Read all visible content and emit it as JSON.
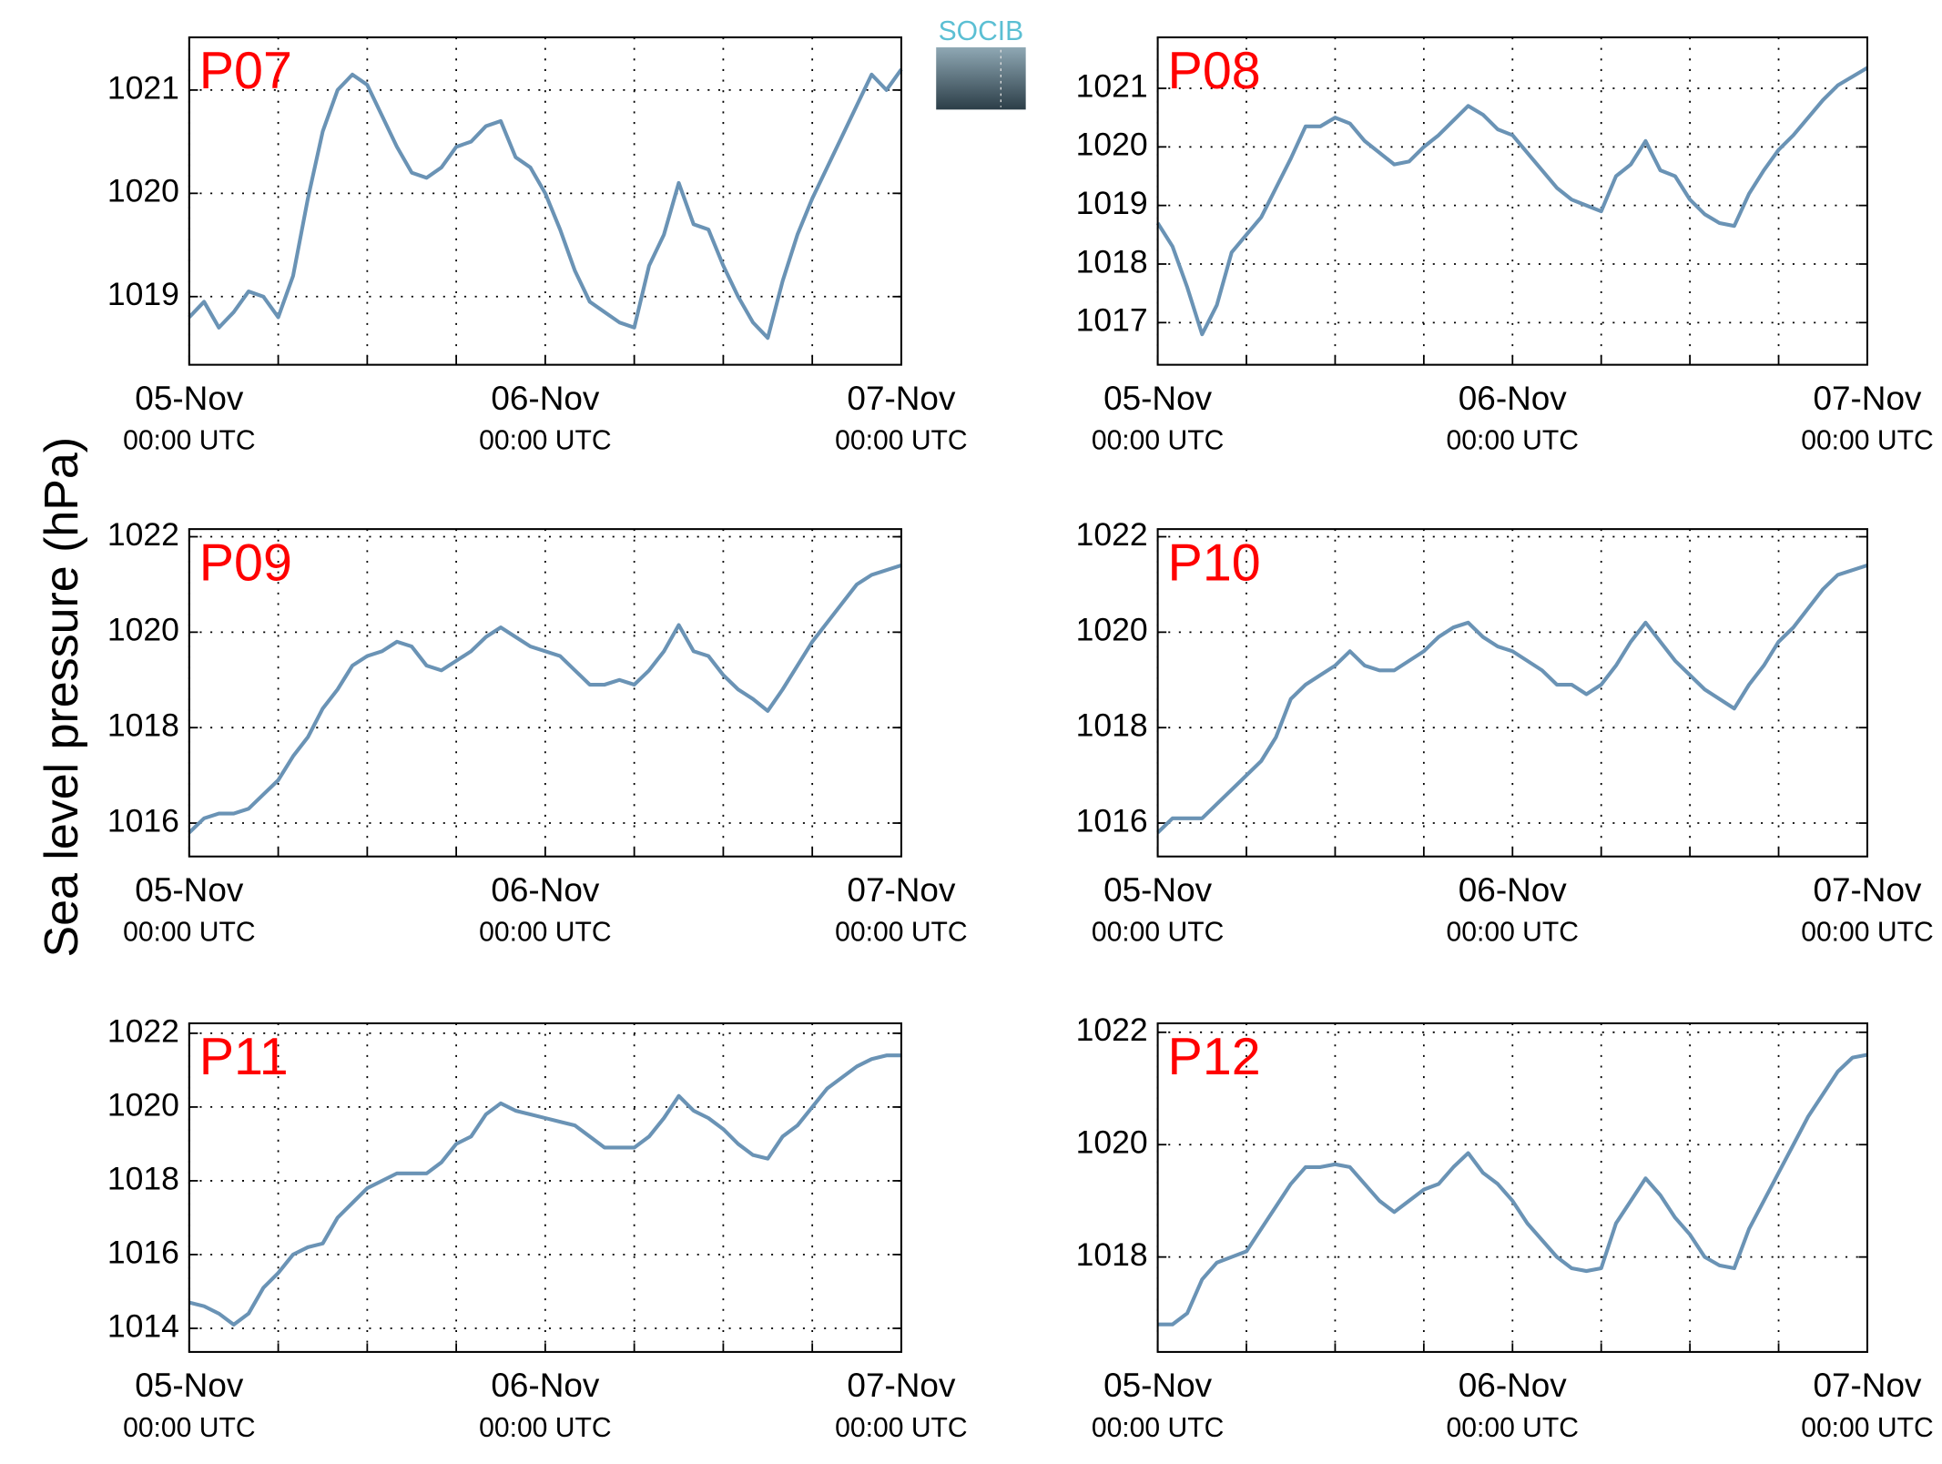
{
  "logo": "SOCIB",
  "ylabel": "Sea level pressure (hPa)",
  "chart_data": [
    {
      "type": "line",
      "title": "P07",
      "color": "#6a93b5",
      "x": [
        0,
        1,
        2,
        3,
        4,
        5,
        6,
        7,
        8,
        9,
        10,
        11,
        12,
        13,
        14,
        15,
        16,
        17,
        18,
        19,
        20,
        21,
        22,
        23,
        24,
        25,
        26,
        27,
        28,
        29,
        30,
        31,
        32,
        33,
        34,
        35,
        36,
        37,
        38,
        39,
        40,
        41,
        42,
        43,
        44,
        45,
        46,
        47,
        48
      ],
      "values": [
        1018.8,
        1018.95,
        1018.7,
        1018.85,
        1019.05,
        1019.0,
        1018.8,
        1019.2,
        1019.95,
        1020.6,
        1021.0,
        1021.15,
        1021.05,
        1020.75,
        1020.45,
        1020.2,
        1020.15,
        1020.25,
        1020.45,
        1020.5,
        1020.65,
        1020.7,
        1020.35,
        1020.25,
        1020.0,
        1019.65,
        1019.25,
        1018.95,
        1018.85,
        1018.75,
        1018.7,
        1019.3,
        1019.6,
        1020.1,
        1019.7,
        1019.65,
        1019.3,
        1019.0,
        1018.75,
        1018.6,
        1019.15,
        1019.6,
        1019.95,
        1020.25,
        1020.55,
        1020.85,
        1021.15,
        1021.0,
        1021.2
      ],
      "xlim": [
        0,
        48
      ],
      "xticks": [
        {
          "value": 0,
          "label": "05-Nov\n00:00 UTC"
        },
        {
          "value": 24,
          "label": "06-Nov\n00:00 UTC"
        },
        {
          "value": 48,
          "label": "07-Nov\n00:00 UTC"
        }
      ],
      "xminor": [
        6,
        12,
        18,
        30,
        36,
        42
      ],
      "ylim": [
        1018.34,
        1021.51
      ],
      "yticks": [
        1019,
        1020,
        1021
      ],
      "grid": true
    },
    {
      "type": "line",
      "title": "P08",
      "color": "#6a93b5",
      "x": [
        0,
        1,
        2,
        3,
        4,
        5,
        6,
        7,
        8,
        9,
        10,
        11,
        12,
        13,
        14,
        15,
        16,
        17,
        18,
        19,
        20,
        21,
        22,
        23,
        24,
        25,
        26,
        27,
        28,
        29,
        30,
        31,
        32,
        33,
        34,
        35,
        36,
        37,
        38,
        39,
        40,
        41,
        42,
        43,
        44,
        45,
        46,
        47,
        48
      ],
      "values": [
        1018.7,
        1018.3,
        1017.6,
        1016.8,
        1017.3,
        1018.2,
        1018.5,
        1018.8,
        1019.3,
        1019.8,
        1020.35,
        1020.35,
        1020.5,
        1020.4,
        1020.1,
        1019.9,
        1019.7,
        1019.75,
        1020.0,
        1020.2,
        1020.45,
        1020.7,
        1020.55,
        1020.3,
        1020.2,
        1019.9,
        1019.6,
        1019.3,
        1019.1,
        1019.0,
        1018.9,
        1019.5,
        1019.7,
        1020.1,
        1019.6,
        1019.5,
        1019.1,
        1018.85,
        1018.7,
        1018.65,
        1019.2,
        1019.6,
        1019.95,
        1020.2,
        1020.5,
        1020.8,
        1021.05,
        1021.2,
        1021.35
      ],
      "xlim": [
        0,
        48
      ],
      "xticks": [
        {
          "value": 0,
          "label": "05-Nov\n00:00 UTC"
        },
        {
          "value": 24,
          "label": "06-Nov\n00:00 UTC"
        },
        {
          "value": 48,
          "label": "07-Nov\n00:00 UTC"
        }
      ],
      "xminor": [
        6,
        12,
        18,
        30,
        36,
        42
      ],
      "ylim": [
        1016.28,
        1021.87
      ],
      "yticks": [
        1017,
        1018,
        1019,
        1020,
        1021
      ],
      "grid": true
    },
    {
      "type": "line",
      "title": "P09",
      "color": "#6a93b5",
      "x": [
        0,
        1,
        2,
        3,
        4,
        5,
        6,
        7,
        8,
        9,
        10,
        11,
        12,
        13,
        14,
        15,
        16,
        17,
        18,
        19,
        20,
        21,
        22,
        23,
        24,
        25,
        26,
        27,
        28,
        29,
        30,
        31,
        32,
        33,
        34,
        35,
        36,
        37,
        38,
        39,
        40,
        41,
        42,
        43,
        44,
        45,
        46,
        47,
        48
      ],
      "values": [
        1015.8,
        1016.1,
        1016.2,
        1016.2,
        1016.3,
        1016.6,
        1016.9,
        1017.4,
        1017.8,
        1018.4,
        1018.8,
        1019.3,
        1019.5,
        1019.6,
        1019.8,
        1019.7,
        1019.3,
        1019.2,
        1019.4,
        1019.6,
        1019.9,
        1020.1,
        1019.9,
        1019.7,
        1019.6,
        1019.5,
        1019.2,
        1018.9,
        1018.9,
        1019.0,
        1018.9,
        1019.2,
        1019.6,
        1020.15,
        1019.6,
        1019.5,
        1019.1,
        1018.8,
        1018.6,
        1018.35,
        1018.8,
        1019.3,
        1019.8,
        1020.2,
        1020.6,
        1021.0,
        1021.2,
        1021.3,
        1021.4
      ],
      "xlim": [
        0,
        48
      ],
      "xticks": [
        {
          "value": 0,
          "label": "05-Nov\n00:00 UTC"
        },
        {
          "value": 24,
          "label": "06-Nov\n00:00 UTC"
        },
        {
          "value": 48,
          "label": "07-Nov\n00:00 UTC"
        }
      ],
      "xminor": [
        6,
        12,
        18,
        30,
        36,
        42
      ],
      "ylim": [
        1015.3,
        1022.16
      ],
      "yticks": [
        1016,
        1018,
        1020,
        1022
      ],
      "grid": true
    },
    {
      "type": "line",
      "title": "P10",
      "color": "#6a93b5",
      "x": [
        0,
        1,
        2,
        3,
        4,
        5,
        6,
        7,
        8,
        9,
        10,
        11,
        12,
        13,
        14,
        15,
        16,
        17,
        18,
        19,
        20,
        21,
        22,
        23,
        24,
        25,
        26,
        27,
        28,
        29,
        30,
        31,
        32,
        33,
        34,
        35,
        36,
        37,
        38,
        39,
        40,
        41,
        42,
        43,
        44,
        45,
        46,
        47,
        48
      ],
      "values": [
        1015.8,
        1016.1,
        1016.1,
        1016.1,
        1016.4,
        1016.7,
        1017.0,
        1017.3,
        1017.8,
        1018.6,
        1018.9,
        1019.1,
        1019.3,
        1019.6,
        1019.3,
        1019.2,
        1019.2,
        1019.4,
        1019.6,
        1019.9,
        1020.1,
        1020.2,
        1019.9,
        1019.7,
        1019.6,
        1019.4,
        1019.2,
        1018.9,
        1018.9,
        1018.7,
        1018.9,
        1019.3,
        1019.8,
        1020.2,
        1019.8,
        1019.4,
        1019.1,
        1018.8,
        1018.6,
        1018.4,
        1018.9,
        1019.3,
        1019.8,
        1020.1,
        1020.5,
        1020.9,
        1021.2,
        1021.3,
        1021.4
      ],
      "xlim": [
        0,
        48
      ],
      "xticks": [
        {
          "value": 0,
          "label": "05-Nov\n00:00 UTC"
        },
        {
          "value": 24,
          "label": "06-Nov\n00:00 UTC"
        },
        {
          "value": 48,
          "label": "07-Nov\n00:00 UTC"
        }
      ],
      "xminor": [
        6,
        12,
        18,
        30,
        36,
        42
      ],
      "ylim": [
        1015.3,
        1022.16
      ],
      "yticks": [
        1016,
        1018,
        1020,
        1022
      ],
      "grid": true
    },
    {
      "type": "line",
      "title": "P11",
      "color": "#6a93b5",
      "x": [
        0,
        1,
        2,
        3,
        4,
        5,
        6,
        7,
        8,
        9,
        10,
        11,
        12,
        13,
        14,
        15,
        16,
        17,
        18,
        19,
        20,
        21,
        22,
        23,
        24,
        25,
        26,
        27,
        28,
        29,
        30,
        31,
        32,
        33,
        34,
        35,
        36,
        37,
        38,
        39,
        40,
        41,
        42,
        43,
        44,
        45,
        46,
        47,
        48
      ],
      "values": [
        1014.7,
        1014.6,
        1014.4,
        1014.1,
        1014.4,
        1015.1,
        1015.5,
        1016.0,
        1016.2,
        1016.3,
        1017.0,
        1017.4,
        1017.8,
        1018.0,
        1018.2,
        1018.2,
        1018.2,
        1018.5,
        1019.0,
        1019.2,
        1019.8,
        1020.1,
        1019.9,
        1019.8,
        1019.7,
        1019.6,
        1019.5,
        1019.2,
        1018.9,
        1018.9,
        1018.9,
        1019.2,
        1019.7,
        1020.3,
        1019.9,
        1019.7,
        1019.4,
        1019.0,
        1018.7,
        1018.6,
        1019.2,
        1019.5,
        1020.0,
        1020.5,
        1020.8,
        1021.1,
        1021.3,
        1021.4,
        1021.4
      ],
      "xlim": [
        0,
        48
      ],
      "xticks": [
        {
          "value": 0,
          "label": "05-Nov\n00:00 UTC"
        },
        {
          "value": 24,
          "label": "06-Nov\n00:00 UTC"
        },
        {
          "value": 48,
          "label": "07-Nov\n00:00 UTC"
        }
      ],
      "xminor": [
        6,
        12,
        18,
        30,
        36,
        42
      ],
      "ylim": [
        1013.36,
        1022.27
      ],
      "yticks": [
        1014,
        1016,
        1018,
        1020,
        1022
      ],
      "grid": true
    },
    {
      "type": "line",
      "title": "P12",
      "color": "#6a93b5",
      "x": [
        0,
        1,
        2,
        3,
        4,
        5,
        6,
        7,
        8,
        9,
        10,
        11,
        12,
        13,
        14,
        15,
        16,
        17,
        18,
        19,
        20,
        21,
        22,
        23,
        24,
        25,
        26,
        27,
        28,
        29,
        30,
        31,
        32,
        33,
        34,
        35,
        36,
        37,
        38,
        39,
        40,
        41,
        42,
        43,
        44,
        45,
        46,
        47,
        48
      ],
      "values": [
        1016.8,
        1016.8,
        1017.0,
        1017.6,
        1017.9,
        1018.0,
        1018.1,
        1018.5,
        1018.9,
        1019.3,
        1019.6,
        1019.6,
        1019.65,
        1019.6,
        1019.3,
        1019.0,
        1018.8,
        1019.0,
        1019.2,
        1019.3,
        1019.6,
        1019.85,
        1019.5,
        1019.3,
        1019.0,
        1018.6,
        1018.3,
        1018.0,
        1017.8,
        1017.75,
        1017.8,
        1018.6,
        1019.0,
        1019.4,
        1019.1,
        1018.7,
        1018.4,
        1018.0,
        1017.85,
        1017.8,
        1018.5,
        1019.0,
        1019.5,
        1020.0,
        1020.5,
        1020.9,
        1021.3,
        1021.55,
        1021.6
      ],
      "xlim": [
        0,
        48
      ],
      "xticks": [
        {
          "value": 0,
          "label": "05-Nov\n00:00 UTC"
        },
        {
          "value": 24,
          "label": "06-Nov\n00:00 UTC"
        },
        {
          "value": 48,
          "label": "07-Nov\n00:00 UTC"
        }
      ],
      "xminor": [
        6,
        12,
        18,
        30,
        36,
        42
      ],
      "ylim": [
        1016.31,
        1022.16
      ],
      "yticks": [
        1018,
        1020,
        1022
      ],
      "grid": true
    }
  ]
}
